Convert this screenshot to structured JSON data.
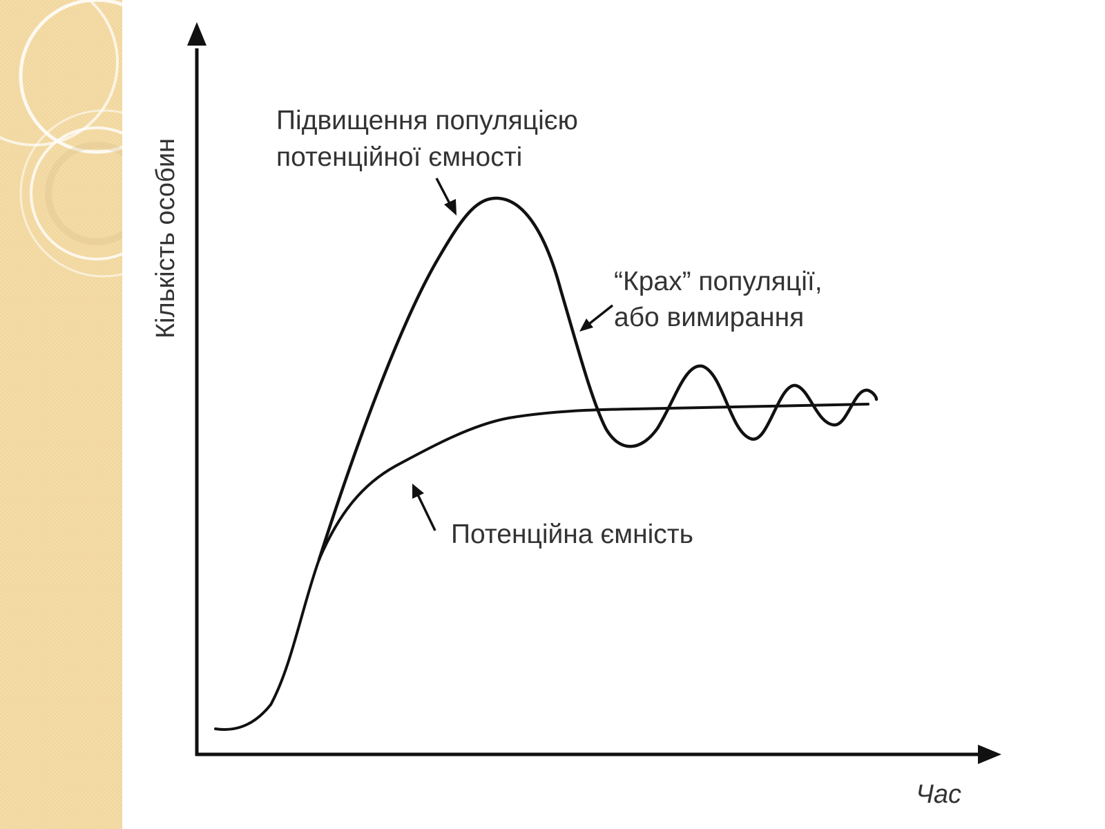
{
  "theme": {
    "side_band_color": "#f4dca8",
    "ring_color": "#ffffff",
    "ink_color": "#111111",
    "text_color": "#333333"
  },
  "axes": {
    "y_label": "Кількість особин",
    "x_label": "Час"
  },
  "annotations": {
    "peak": {
      "line1": "Підвищення популяцією",
      "line2": "потенційної ємності"
    },
    "crash": {
      "line1": "“Крах” популяції,",
      "line2": "або вимирання"
    },
    "capacity": {
      "line1": "Потенційна ємність"
    }
  }
}
